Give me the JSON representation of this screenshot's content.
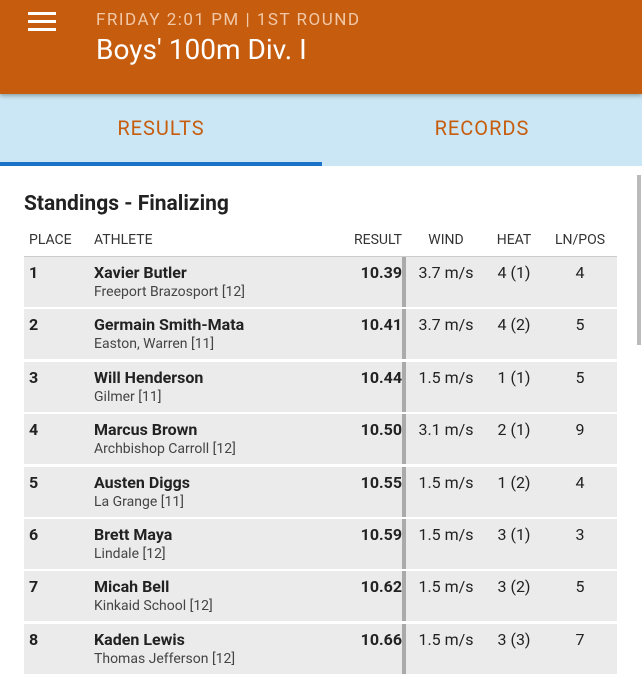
{
  "header": {
    "subtitle": "FRIDAY 2:01 PM | 1ST ROUND",
    "title": "Boys' 100m Div. I"
  },
  "tabs": [
    "RESULTS",
    "RECORDS"
  ],
  "section_title": "Standings - Finalizing",
  "table": {
    "columns": [
      "PLACE",
      "ATHLETE",
      "RESULT",
      "WIND",
      "HEAT",
      "LN/POS"
    ],
    "rows": [
      {
        "place": "1",
        "athlete": "Xavier Butler",
        "school": "Freeport Brazosport [12]",
        "result": "10.39",
        "wind": "3.7 m/s",
        "heat": "4 (1)",
        "lane": "4"
      },
      {
        "place": "2",
        "athlete": "Germain Smith-Mata",
        "school": "Easton, Warren [11]",
        "result": "10.41",
        "wind": "3.7 m/s",
        "heat": "4 (2)",
        "lane": "5"
      },
      {
        "place": "3",
        "athlete": "Will Henderson",
        "school": "Gilmer [11]",
        "result": "10.44",
        "wind": "1.5 m/s",
        "heat": "1 (1)",
        "lane": "5"
      },
      {
        "place": "4",
        "athlete": "Marcus Brown",
        "school": "Archbishop Carroll [12]",
        "result": "10.50",
        "wind": "3.1 m/s",
        "heat": "2 (1)",
        "lane": "9"
      },
      {
        "place": "5",
        "athlete": "Austen Diggs",
        "school": "La Grange [11]",
        "result": "10.55",
        "wind": "1.5 m/s",
        "heat": "1 (2)",
        "lane": "4"
      },
      {
        "place": "6",
        "athlete": "Brett Maya",
        "school": "Lindale [12]",
        "result": "10.59",
        "wind": "1.5 m/s",
        "heat": "3 (1)",
        "lane": "3"
      },
      {
        "place": "7",
        "athlete": "Micah Bell",
        "school": "Kinkaid School [12]",
        "result": "10.62",
        "wind": "1.5 m/s",
        "heat": "3 (2)",
        "lane": "5"
      },
      {
        "place": "8",
        "athlete": "Kaden Lewis",
        "school": "Thomas Jefferson [12]",
        "result": "10.66",
        "wind": "1.5 m/s",
        "heat": "3 (3)",
        "lane": "7"
      }
    ]
  }
}
